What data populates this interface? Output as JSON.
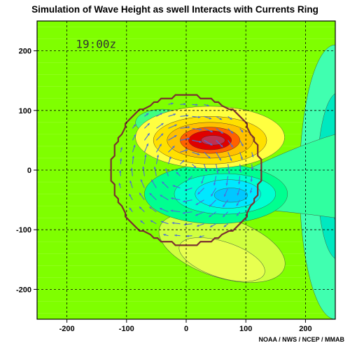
{
  "chart_data": {
    "type": "heatmap",
    "title": "Simulation of Wave Height as swell Interacts with Currents Ring",
    "time_label": "19:00z",
    "credit": "NOAA / NWS / NCEP / MMAB",
    "xlim": [
      -250,
      250
    ],
    "ylim": [
      -250,
      250
    ],
    "x_ticks": [
      -200,
      -100,
      0,
      100,
      200
    ],
    "y_ticks": [
      -200,
      -100,
      0,
      100,
      200
    ],
    "grid": true,
    "ring_radius": 125,
    "colors": {
      "background_field": "#7fff00",
      "grid": "#000000",
      "ring_outline": "#7a3030",
      "vectors": "#4a6ed8"
    },
    "contour_features": [
      {
        "kind": "max",
        "center": [
          40,
          50
        ],
        "level": "high",
        "colors": [
          "#ffff40",
          "#ffc000",
          "#ff6000",
          "#e00000"
        ]
      },
      {
        "kind": "min",
        "center": [
          70,
          -40
        ],
        "level": "low",
        "colors": [
          "#00ff90",
          "#00e8ff",
          "#00c8ff"
        ]
      },
      {
        "kind": "min",
        "center": [
          -40,
          80
        ],
        "level": "low",
        "colors": [
          "#40ff80"
        ]
      },
      {
        "kind": "max",
        "center": [
          60,
          -130
        ],
        "level": "high",
        "colors": [
          "#d0ff40"
        ]
      },
      {
        "kind": "min",
        "center": [
          240,
          0
        ],
        "level": "low",
        "colors": [
          "#00e8c0",
          "#00d8ff"
        ]
      }
    ]
  }
}
